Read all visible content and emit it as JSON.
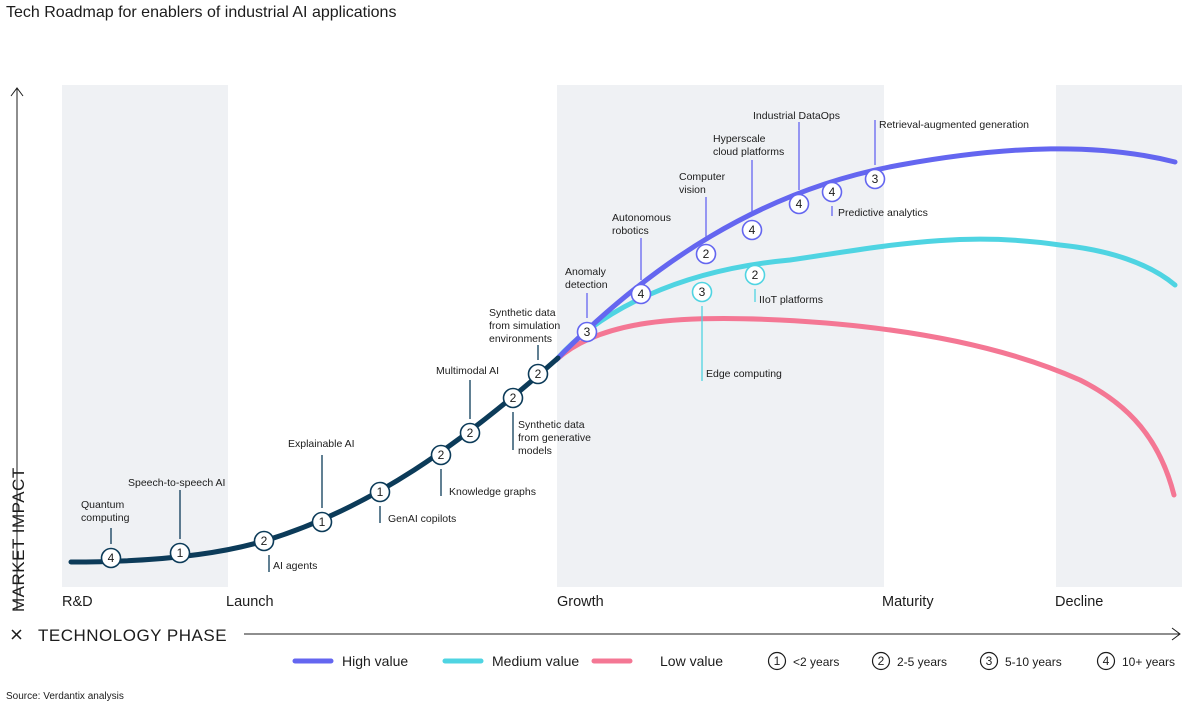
{
  "title": "Tech Roadmap for enablers of industrial AI applications",
  "source": "Source: Verdantix analysis",
  "chart_data": {
    "type": "line",
    "title": "Tech Roadmap for enablers of industrial AI applications",
    "xlabel": "TECHNOLOGY PHASE",
    "ylabel": "MARKET IMPACT",
    "x_categories": [
      "R&D",
      "Launch",
      "Growth",
      "Maturity",
      "Decline"
    ],
    "series": [
      {
        "name": "High value",
        "color": "#6466f0"
      },
      {
        "name": "Medium value",
        "color": "#4fd4e2"
      },
      {
        "name": "Low value",
        "color": "#f47794"
      }
    ],
    "base_color": "#0c3b59",
    "time_legend": [
      {
        "value": "1",
        "label": "<2 years"
      },
      {
        "value": "2",
        "label": "2-5 years"
      },
      {
        "value": "3",
        "label": "5-10 years"
      },
      {
        "value": "4",
        "label": "10+ years"
      }
    ],
    "technologies": [
      {
        "name": "Quantum computing",
        "lines": [
          "Quantum",
          "computing"
        ],
        "years": "4",
        "series": "base"
      },
      {
        "name": "Speech-to-speech AI",
        "lines": [
          "Speech-to-speech AI"
        ],
        "years": "1",
        "series": "base"
      },
      {
        "name": "AI agents",
        "lines": [
          "AI agents"
        ],
        "years": "2",
        "series": "base"
      },
      {
        "name": "Explainable AI",
        "lines": [
          "Explainable AI"
        ],
        "years": "1",
        "series": "base"
      },
      {
        "name": "GenAI copilots",
        "lines": [
          "GenAI copilots"
        ],
        "years": "1",
        "series": "base"
      },
      {
        "name": "Knowledge graphs",
        "lines": [
          "Knowledge graphs"
        ],
        "years": "2",
        "series": "base"
      },
      {
        "name": "Multimodal AI",
        "lines": [
          "Multimodal AI"
        ],
        "years": "2",
        "series": "base"
      },
      {
        "name": "Synthetic data from generative models",
        "lines": [
          "Synthetic data",
          "from generative",
          "models"
        ],
        "years": "2",
        "series": "base"
      },
      {
        "name": "Synthetic data from simulation environments",
        "lines": [
          "Synthetic data",
          "from simulation",
          "environments"
        ],
        "years": "2",
        "series": "base"
      },
      {
        "name": "Anomaly detection",
        "lines": [
          "Anomaly",
          "detection"
        ],
        "years": "3",
        "series": "High value"
      },
      {
        "name": "Autonomous robotics",
        "lines": [
          "Autonomous",
          "robotics"
        ],
        "years": "4",
        "series": "High value"
      },
      {
        "name": "Computer vision",
        "lines": [
          "Computer",
          "vision"
        ],
        "years": "2",
        "series": "High value"
      },
      {
        "name": "Hyperscale cloud platforms",
        "lines": [
          "Hyperscale",
          "cloud platforms"
        ],
        "years": "4",
        "series": "High value"
      },
      {
        "name": "Industrial DataOps",
        "lines": [
          "Industrial DataOps"
        ],
        "years": "4",
        "series": "High value"
      },
      {
        "name": "Predictive analytics",
        "lines": [
          "Predictive analytics"
        ],
        "years": "4",
        "series": "High value"
      },
      {
        "name": "Retrieval-augmented generation",
        "lines": [
          "Retrieval-augmented generation"
        ],
        "years": "3",
        "series": "High value"
      },
      {
        "name": "Edge computing",
        "lines": [
          "Edge computing"
        ],
        "years": "3",
        "series": "Medium value"
      },
      {
        "name": "IIoT platforms",
        "lines": [
          "IIoT platforms"
        ],
        "years": "2",
        "series": "Medium value"
      }
    ]
  }
}
